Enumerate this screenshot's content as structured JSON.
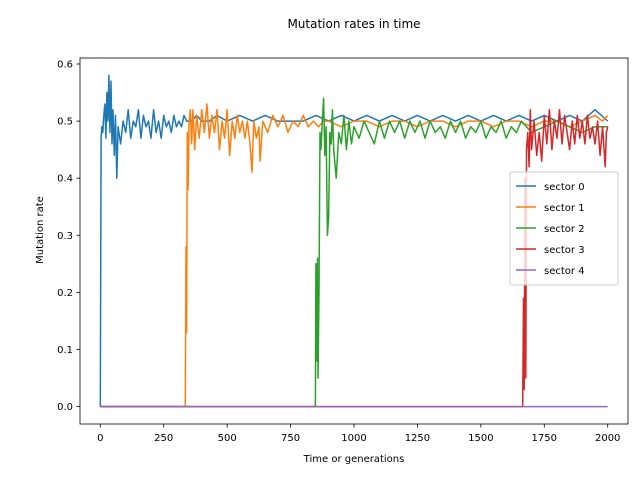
{
  "chart_data": {
    "type": "line",
    "title": "Mutation rates in time",
    "xlabel": "Time or generations",
    "ylabel": "Mutation rate",
    "xlim": [
      -80,
      2080
    ],
    "ylim": [
      -0.0305,
      0.6105
    ],
    "xticks": [
      0,
      250,
      500,
      750,
      1000,
      1250,
      1500,
      1750,
      2000
    ],
    "xtick_labels": [
      "0",
      "250",
      "500",
      "750",
      "1000",
      "1250",
      "1500",
      "1750",
      "2000"
    ],
    "yticks": [
      0.0,
      0.1,
      0.2,
      0.3,
      0.4,
      0.5,
      0.6
    ],
    "ytick_labels": [
      "0.0",
      "0.1",
      "0.2",
      "0.3",
      "0.4",
      "0.5",
      "0.6"
    ],
    "grid": false,
    "legend_position": "center-right",
    "series": [
      {
        "name": "sector 0",
        "color": "#1f77b4",
        "points": [
          [
            0,
            0.0
          ],
          [
            3,
            0.47
          ],
          [
            6,
            0.49
          ],
          [
            10,
            0.48
          ],
          [
            14,
            0.51
          ],
          [
            18,
            0.53
          ],
          [
            22,
            0.47
          ],
          [
            26,
            0.55
          ],
          [
            30,
            0.5
          ],
          [
            34,
            0.58
          ],
          [
            38,
            0.48
          ],
          [
            42,
            0.57
          ],
          [
            46,
            0.46
          ],
          [
            50,
            0.52
          ],
          [
            55,
            0.44
          ],
          [
            60,
            0.51
          ],
          [
            65,
            0.4
          ],
          [
            70,
            0.49
          ],
          [
            80,
            0.46
          ],
          [
            90,
            0.5
          ],
          [
            100,
            0.48
          ],
          [
            110,
            0.52
          ],
          [
            120,
            0.47
          ],
          [
            130,
            0.5
          ],
          [
            140,
            0.49
          ],
          [
            150,
            0.52
          ],
          [
            160,
            0.47
          ],
          [
            170,
            0.51
          ],
          [
            180,
            0.49
          ],
          [
            190,
            0.5
          ],
          [
            200,
            0.47
          ],
          [
            210,
            0.52
          ],
          [
            220,
            0.48
          ],
          [
            230,
            0.5
          ],
          [
            240,
            0.47
          ],
          [
            250,
            0.51
          ],
          [
            260,
            0.49
          ],
          [
            270,
            0.5
          ],
          [
            280,
            0.48
          ],
          [
            290,
            0.51
          ],
          [
            300,
            0.49
          ],
          [
            310,
            0.5
          ],
          [
            320,
            0.49
          ],
          [
            330,
            0.51
          ],
          [
            340,
            0.5
          ],
          [
            360,
            0.5
          ],
          [
            380,
            0.51
          ],
          [
            400,
            0.5
          ],
          [
            430,
            0.5
          ],
          [
            460,
            0.51
          ],
          [
            500,
            0.5
          ],
          [
            550,
            0.51
          ],
          [
            600,
            0.5
          ],
          [
            650,
            0.51
          ],
          [
            700,
            0.5
          ],
          [
            750,
            0.5
          ],
          [
            800,
            0.5
          ],
          [
            850,
            0.51
          ],
          [
            900,
            0.5
          ],
          [
            950,
            0.51
          ],
          [
            1000,
            0.5
          ],
          [
            1050,
            0.51
          ],
          [
            1100,
            0.5
          ],
          [
            1150,
            0.51
          ],
          [
            1200,
            0.5
          ],
          [
            1250,
            0.51
          ],
          [
            1300,
            0.5
          ],
          [
            1350,
            0.51
          ],
          [
            1400,
            0.5
          ],
          [
            1450,
            0.51
          ],
          [
            1500,
            0.5
          ],
          [
            1550,
            0.51
          ],
          [
            1600,
            0.5
          ],
          [
            1650,
            0.51
          ],
          [
            1700,
            0.5
          ],
          [
            1750,
            0.51
          ],
          [
            1800,
            0.5
          ],
          [
            1850,
            0.51
          ],
          [
            1900,
            0.5
          ],
          [
            1950,
            0.52
          ],
          [
            2000,
            0.5
          ]
        ]
      },
      {
        "name": "sector 1",
        "color": "#ff7f0e",
        "points": [
          [
            0,
            0.0
          ],
          [
            335,
            0.0
          ],
          [
            338,
            0.28
          ],
          [
            340,
            0.13
          ],
          [
            343,
            0.48
          ],
          [
            346,
            0.38
          ],
          [
            350,
            0.5
          ],
          [
            355,
            0.52
          ],
          [
            360,
            0.46
          ],
          [
            365,
            0.52
          ],
          [
            372,
            0.45
          ],
          [
            380,
            0.51
          ],
          [
            390,
            0.47
          ],
          [
            400,
            0.52
          ],
          [
            410,
            0.48
          ],
          [
            420,
            0.53
          ],
          [
            430,
            0.47
          ],
          [
            440,
            0.51
          ],
          [
            450,
            0.48
          ],
          [
            460,
            0.52
          ],
          [
            470,
            0.45
          ],
          [
            480,
            0.5
          ],
          [
            490,
            0.47
          ],
          [
            500,
            0.52
          ],
          [
            510,
            0.44
          ],
          [
            520,
            0.5
          ],
          [
            530,
            0.47
          ],
          [
            540,
            0.51
          ],
          [
            550,
            0.48
          ],
          [
            560,
            0.5
          ],
          [
            570,
            0.47
          ],
          [
            580,
            0.5
          ],
          [
            590,
            0.46
          ],
          [
            598,
            0.41
          ],
          [
            605,
            0.5
          ],
          [
            615,
            0.47
          ],
          [
            625,
            0.49
          ],
          [
            630,
            0.43
          ],
          [
            640,
            0.5
          ],
          [
            660,
            0.48
          ],
          [
            680,
            0.51
          ],
          [
            700,
            0.49
          ],
          [
            720,
            0.51
          ],
          [
            740,
            0.48
          ],
          [
            760,
            0.5
          ],
          [
            780,
            0.49
          ],
          [
            800,
            0.51
          ],
          [
            820,
            0.49
          ],
          [
            840,
            0.5
          ],
          [
            860,
            0.49
          ],
          [
            880,
            0.5
          ],
          [
            900,
            0.5
          ],
          [
            950,
            0.49
          ],
          [
            1000,
            0.5
          ],
          [
            1050,
            0.5
          ],
          [
            1100,
            0.49
          ],
          [
            1150,
            0.5
          ],
          [
            1200,
            0.5
          ],
          [
            1250,
            0.49
          ],
          [
            1300,
            0.5
          ],
          [
            1350,
            0.5
          ],
          [
            1400,
            0.49
          ],
          [
            1450,
            0.5
          ],
          [
            1500,
            0.5
          ],
          [
            1550,
            0.49
          ],
          [
            1600,
            0.5
          ],
          [
            1650,
            0.5
          ],
          [
            1700,
            0.49
          ],
          [
            1750,
            0.5
          ],
          [
            1800,
            0.5
          ],
          [
            1850,
            0.49
          ],
          [
            1900,
            0.5
          ],
          [
            1950,
            0.51
          ],
          [
            1980,
            0.5
          ],
          [
            2000,
            0.51
          ]
        ]
      },
      {
        "name": "sector 2",
        "color": "#2ca02c",
        "points": [
          [
            0,
            0.0
          ],
          [
            848,
            0.0
          ],
          [
            850,
            0.25
          ],
          [
            853,
            0.08
          ],
          [
            856,
            0.26
          ],
          [
            858,
            0.05
          ],
          [
            862,
            0.2
          ],
          [
            866,
            0.48
          ],
          [
            870,
            0.45
          ],
          [
            875,
            0.5
          ],
          [
            880,
            0.54
          ],
          [
            885,
            0.44
          ],
          [
            890,
            0.49
          ],
          [
            895,
            0.3
          ],
          [
            900,
            0.33
          ],
          [
            905,
            0.48
          ],
          [
            910,
            0.46
          ],
          [
            915,
            0.52
          ],
          [
            920,
            0.45
          ],
          [
            930,
            0.4
          ],
          [
            940,
            0.48
          ],
          [
            950,
            0.46
          ],
          [
            960,
            0.51
          ],
          [
            970,
            0.45
          ],
          [
            980,
            0.5
          ],
          [
            990,
            0.46
          ],
          [
            1000,
            0.49
          ],
          [
            1020,
            0.47
          ],
          [
            1040,
            0.5
          ],
          [
            1060,
            0.48
          ],
          [
            1080,
            0.46
          ],
          [
            1100,
            0.5
          ],
          [
            1120,
            0.47
          ],
          [
            1140,
            0.5
          ],
          [
            1160,
            0.48
          ],
          [
            1180,
            0.5
          ],
          [
            1200,
            0.47
          ],
          [
            1220,
            0.5
          ],
          [
            1240,
            0.48
          ],
          [
            1260,
            0.5
          ],
          [
            1280,
            0.47
          ],
          [
            1300,
            0.5
          ],
          [
            1320,
            0.48
          ],
          [
            1340,
            0.49
          ],
          [
            1360,
            0.47
          ],
          [
            1380,
            0.5
          ],
          [
            1400,
            0.48
          ],
          [
            1420,
            0.5
          ],
          [
            1440,
            0.47
          ],
          [
            1460,
            0.49
          ],
          [
            1480,
            0.48
          ],
          [
            1500,
            0.5
          ],
          [
            1520,
            0.47
          ],
          [
            1540,
            0.49
          ],
          [
            1560,
            0.48
          ],
          [
            1580,
            0.5
          ],
          [
            1600,
            0.47
          ],
          [
            1620,
            0.49
          ],
          [
            1640,
            0.48
          ],
          [
            1660,
            0.5
          ],
          [
            1680,
            0.49
          ],
          [
            1700,
            0.48
          ],
          [
            1750,
            0.49
          ],
          [
            1800,
            0.5
          ],
          [
            1850,
            0.49
          ],
          [
            1900,
            0.48
          ],
          [
            1950,
            0.49
          ],
          [
            2000,
            0.49
          ]
        ]
      },
      {
        "name": "sector 3",
        "color": "#d62728",
        "points": [
          [
            0,
            0.0
          ],
          [
            1665,
            0.0
          ],
          [
            1668,
            0.19
          ],
          [
            1671,
            0.03
          ],
          [
            1674,
            0.4
          ],
          [
            1677,
            0.05
          ],
          [
            1680,
            0.45
          ],
          [
            1685,
            0.48
          ],
          [
            1690,
            0.42
          ],
          [
            1695,
            0.52
          ],
          [
            1700,
            0.45
          ],
          [
            1710,
            0.5
          ],
          [
            1720,
            0.44
          ],
          [
            1730,
            0.48
          ],
          [
            1740,
            0.43
          ],
          [
            1750,
            0.51
          ],
          [
            1760,
            0.46
          ],
          [
            1770,
            0.52
          ],
          [
            1780,
            0.45
          ],
          [
            1790,
            0.5
          ],
          [
            1800,
            0.47
          ],
          [
            1810,
            0.52
          ],
          [
            1820,
            0.46
          ],
          [
            1830,
            0.51
          ],
          [
            1840,
            0.48
          ],
          [
            1850,
            0.45
          ],
          [
            1860,
            0.5
          ],
          [
            1870,
            0.46
          ],
          [
            1880,
            0.51
          ],
          [
            1890,
            0.47
          ],
          [
            1900,
            0.5
          ],
          [
            1910,
            0.46
          ],
          [
            1920,
            0.51
          ],
          [
            1930,
            0.47
          ],
          [
            1940,
            0.49
          ],
          [
            1950,
            0.46
          ],
          [
            1960,
            0.5
          ],
          [
            1970,
            0.44
          ],
          [
            1980,
            0.49
          ],
          [
            1990,
            0.42
          ],
          [
            1995,
            0.48
          ],
          [
            2000,
            0.49
          ]
        ]
      },
      {
        "name": "sector 4",
        "color": "#9467bd",
        "points": [
          [
            0,
            0.0
          ],
          [
            2000,
            0.0
          ]
        ]
      }
    ]
  }
}
